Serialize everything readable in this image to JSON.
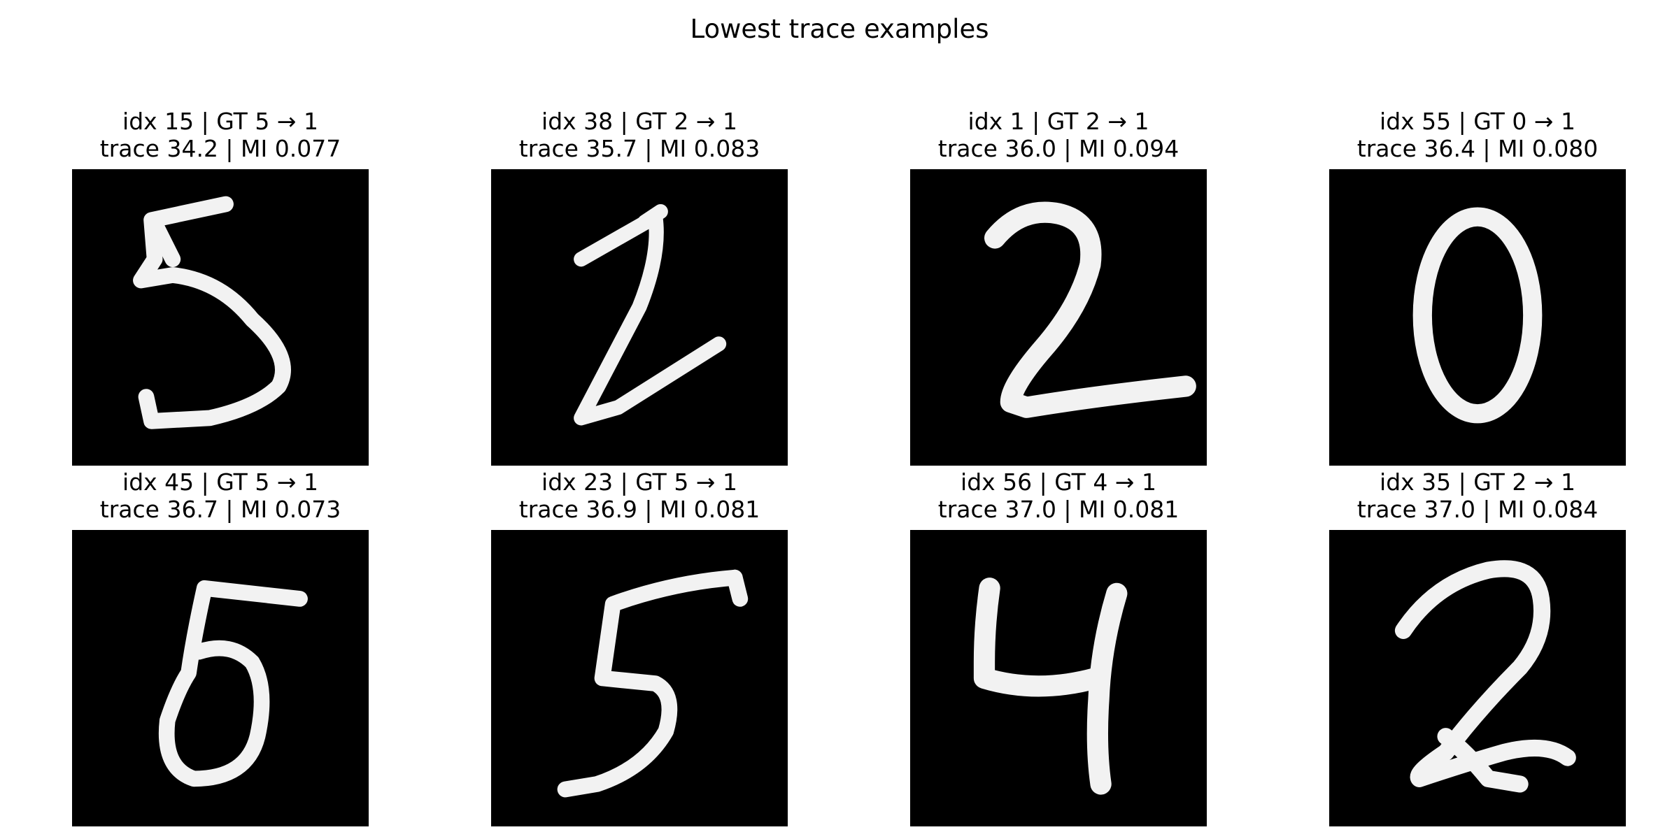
{
  "figure": {
    "title": "Lowest trace examples"
  },
  "examples": [
    {
      "title_line1": "idx 15 | GT 5 → 1",
      "title_line2": "trace 34.2 | MI 0.077",
      "idx": 15,
      "gt": 5,
      "pred": 1,
      "trace": 34.2,
      "mi": 0.077,
      "digit": "5"
    },
    {
      "title_line1": "idx 38 | GT 2 → 1",
      "title_line2": "trace 35.7 | MI 0.083",
      "idx": 38,
      "gt": 2,
      "pred": 1,
      "trace": 35.7,
      "mi": 0.083,
      "digit": "2"
    },
    {
      "title_line1": "idx 1 | GT 2 → 1",
      "title_line2": "trace 36.0 | MI 0.094",
      "idx": 1,
      "gt": 2,
      "pred": 1,
      "trace": 36.0,
      "mi": 0.094,
      "digit": "2"
    },
    {
      "title_line1": "idx 55 | GT 0 → 1",
      "title_line2": "trace 36.4 | MI 0.080",
      "idx": 55,
      "gt": 0,
      "pred": 1,
      "trace": 36.4,
      "mi": 0.08,
      "digit": "0"
    },
    {
      "title_line1": "idx 45 | GT 5 → 1",
      "title_line2": "trace 36.7 | MI 0.073",
      "idx": 45,
      "gt": 5,
      "pred": 1,
      "trace": 36.7,
      "mi": 0.073,
      "digit": "5"
    },
    {
      "title_line1": "idx 23 | GT 5 → 1",
      "title_line2": "trace 36.9 | MI 0.081",
      "idx": 23,
      "gt": 5,
      "pred": 1,
      "trace": 36.9,
      "mi": 0.081,
      "digit": "5"
    },
    {
      "title_line1": "idx 56 | GT 4 → 1",
      "title_line2": "trace 37.0 | MI 0.081",
      "idx": 56,
      "gt": 4,
      "pred": 1,
      "trace": 37.0,
      "mi": 0.081,
      "digit": "4"
    },
    {
      "title_line1": "idx 35 | GT 2 → 1",
      "title_line2": "trace 37.0 | MI 0.084",
      "idx": 35,
      "gt": 2,
      "pred": 1,
      "trace": 37.0,
      "mi": 0.084,
      "digit": "2"
    }
  ],
  "colors": {
    "image_background": "#000000",
    "stroke": "#f2f2f2"
  }
}
